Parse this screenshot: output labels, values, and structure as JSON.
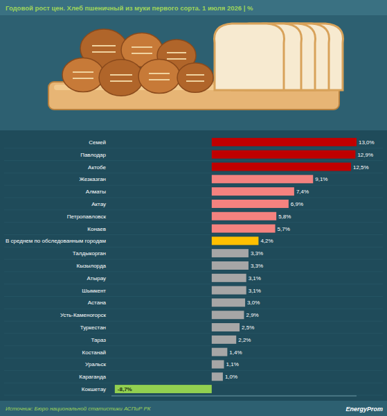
{
  "chart_data": {
    "type": "bar",
    "orientation": "horizontal",
    "title": "Годовой рост цен. Хлеб пшеничный из муки первого сорта. 1 июля 2026 | %",
    "source": "Источник: Бюро национальной статистики АСПиР РК",
    "brand": "EnergyProm",
    "categories": [
      "Семей",
      "Павлодар",
      "Актобе",
      "Жезказган",
      "Алматы",
      "Актау",
      "Петропавловск",
      "Конаев",
      "В среднем по обследованным городам",
      "Талдыкорган",
      "Кызылорда",
      "Атырау",
      "Шымкент",
      "Астана",
      "Усть-Каменогорск",
      "Туркестан",
      "Тараз",
      "Костанай",
      "Уральск",
      "Караганда",
      "Кокшетау"
    ],
    "values": [
      13.0,
      12.9,
      12.5,
      9.1,
      7.4,
      6.9,
      5.8,
      5.7,
      4.2,
      3.3,
      3.3,
      3.1,
      3.1,
      3.0,
      2.9,
      2.5,
      2.2,
      1.4,
      1.1,
      1.0,
      -8.7
    ],
    "value_labels": [
      "13,0%",
      "12,9%",
      "12,5%",
      "9,1%",
      "7,4%",
      "6,9%",
      "5,8%",
      "5,7%",
      "4,2%",
      "3,3%",
      "3,3%",
      "3,1%",
      "3,1%",
      "3,0%",
      "2,9%",
      "2,5%",
      "2,2%",
      "1,4%",
      "1,1%",
      "1,0%",
      "-8,7%"
    ],
    "colors": [
      "#c00000",
      "#c00000",
      "#c00000",
      "#f4827f",
      "#f4827f",
      "#f4827f",
      "#f4827f",
      "#f4827f",
      "#ffc000",
      "#a6a6a6",
      "#a6a6a6",
      "#a6a6a6",
      "#a6a6a6",
      "#a6a6a6",
      "#a6a6a6",
      "#a6a6a6",
      "#a6a6a6",
      "#a6a6a6",
      "#a6a6a6",
      "#a6a6a6",
      "#92d050"
    ],
    "ylim": [
      -9,
      13
    ],
    "data_labels": true,
    "tick_labels": false,
    "grid": false
  }
}
